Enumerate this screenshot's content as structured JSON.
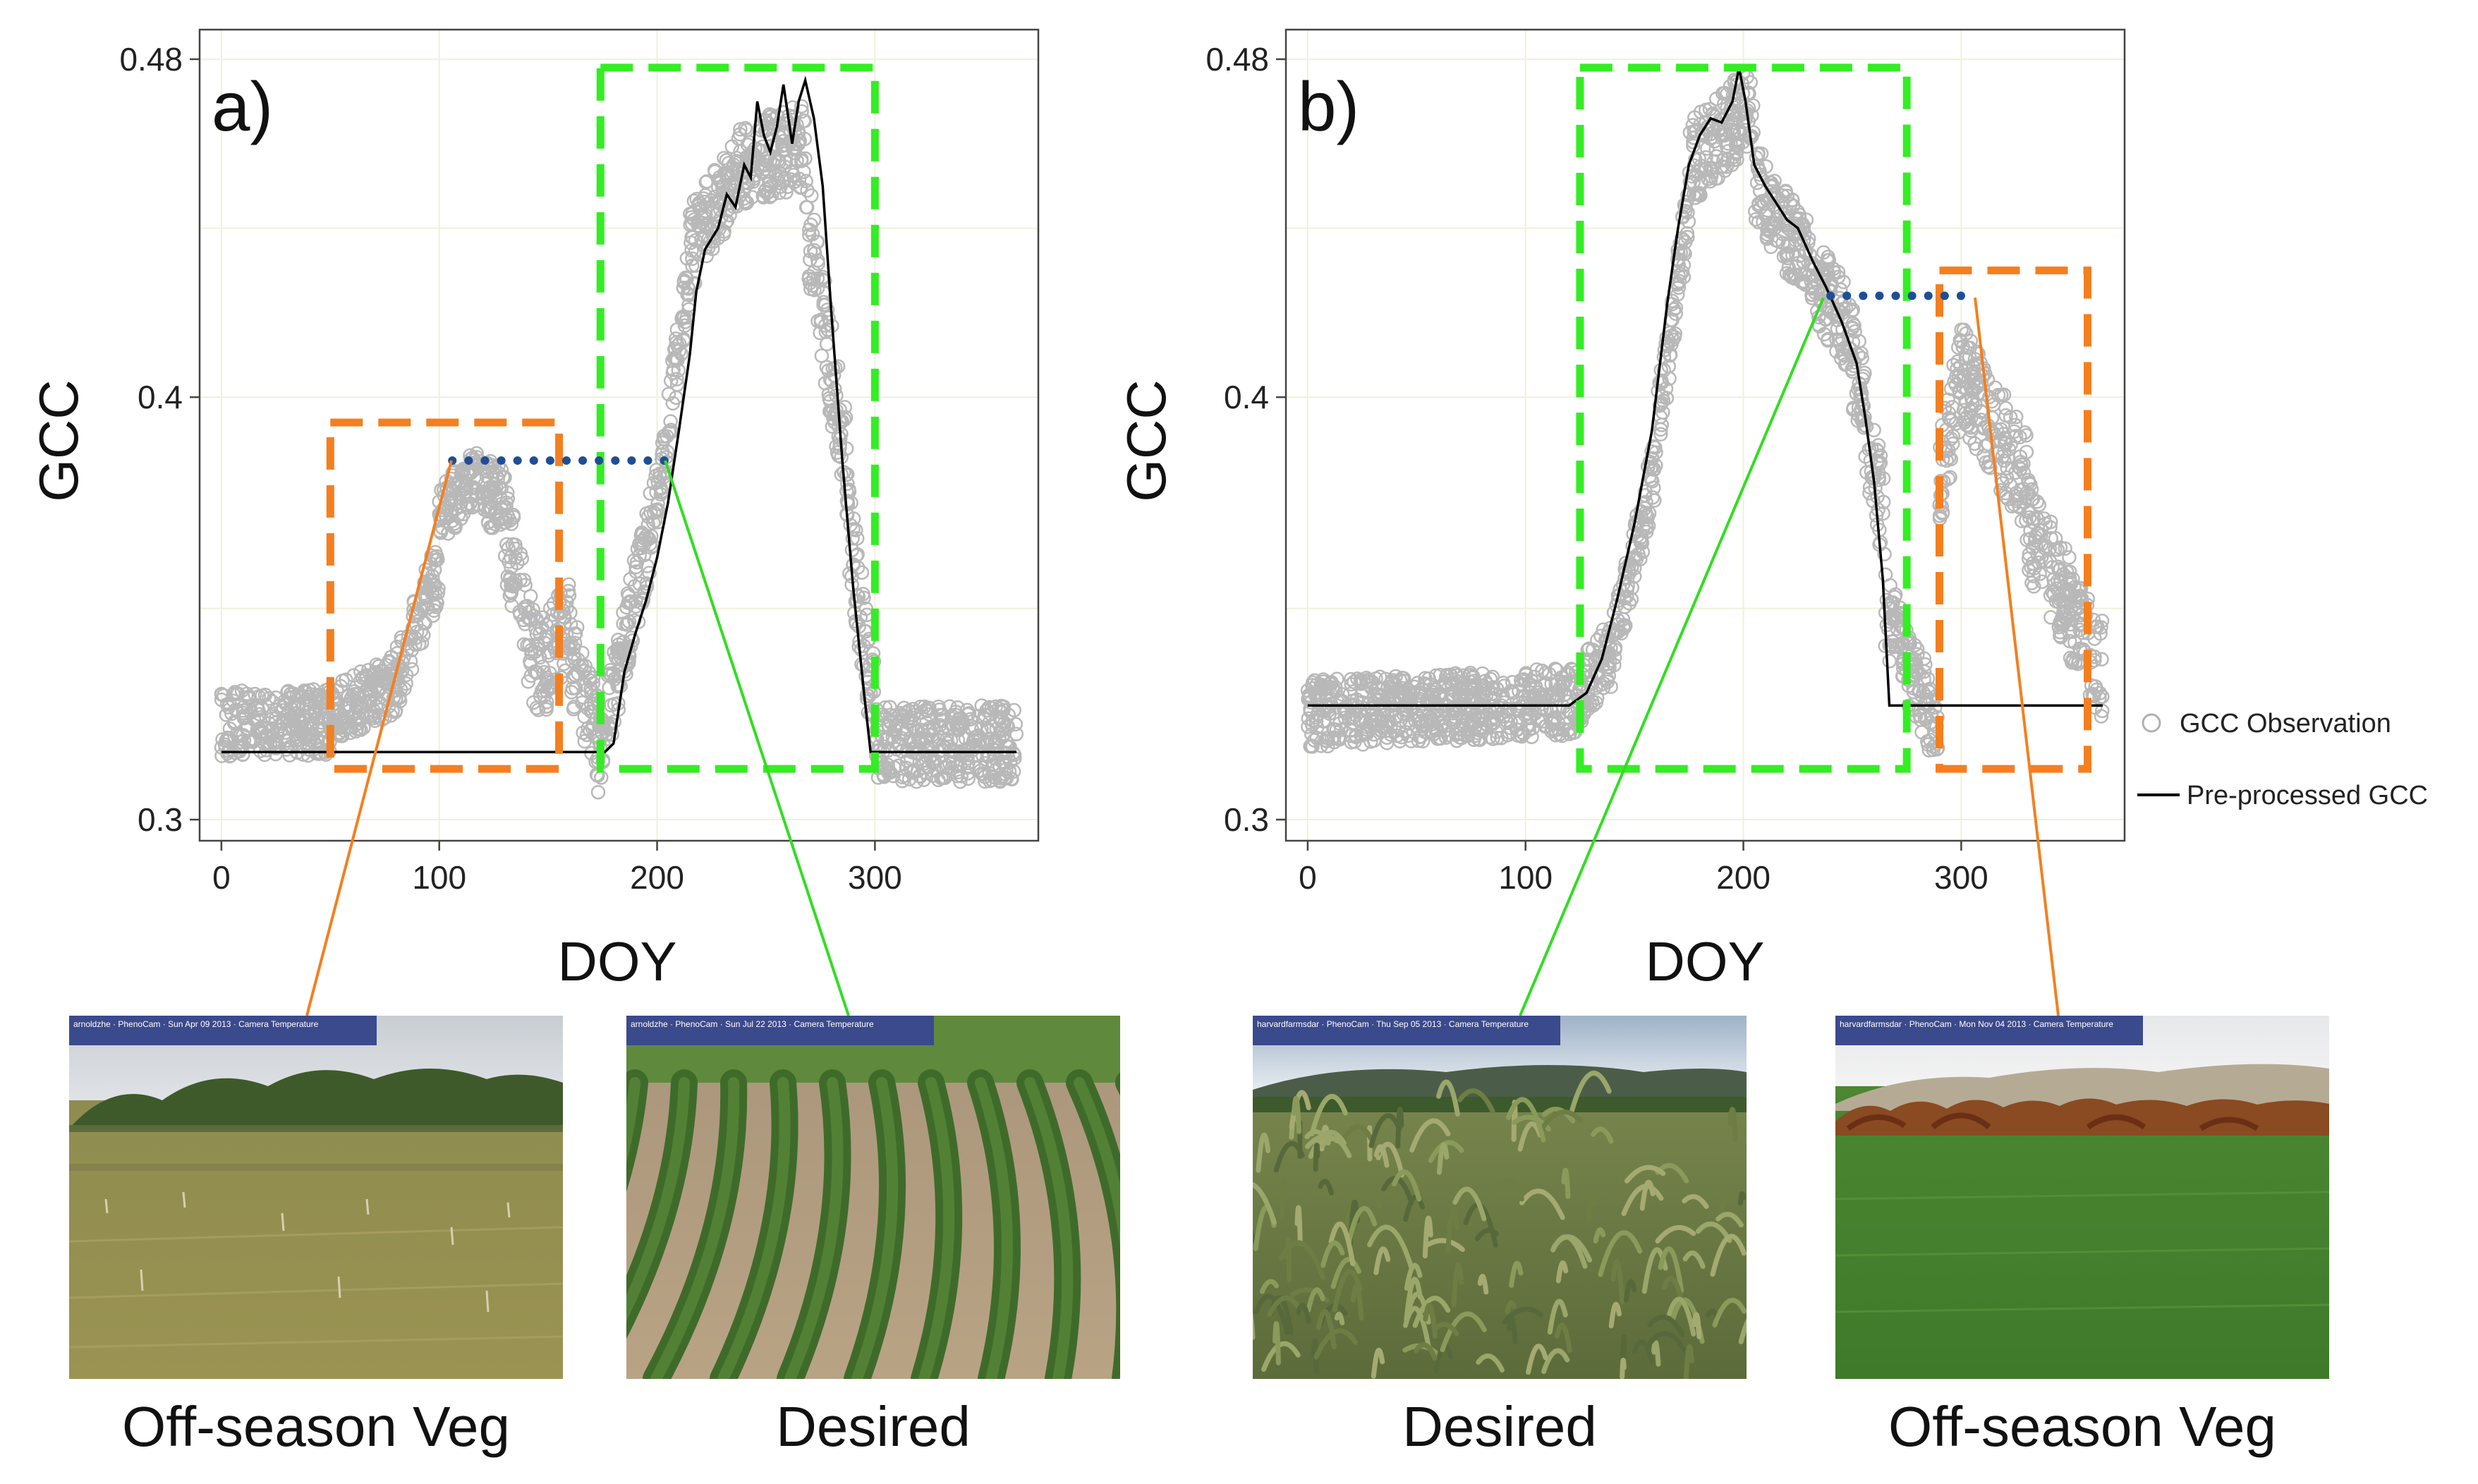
{
  "chart_data": [
    {
      "panel": "a)",
      "type": "scatter",
      "xlabel": "DOY",
      "ylabel": "GCC",
      "xlim": [
        -10,
        375
      ],
      "ylim": [
        0.295,
        0.487
      ],
      "xticks": [
        0,
        100,
        200,
        300
      ],
      "yticks": [
        0.3,
        0.4,
        0.48
      ],
      "ytick_labels": [
        "0.3",
        "0.4",
        "0.48"
      ],
      "grid": true,
      "observation_segments": [
        {
          "x0": 0,
          "x1": 50,
          "y0": 0.323,
          "y1": 0.323,
          "spread": 0.008
        },
        {
          "x0": 50,
          "x1": 80,
          "y0": 0.325,
          "y1": 0.332,
          "spread": 0.007
        },
        {
          "x0": 80,
          "x1": 100,
          "y0": 0.333,
          "y1": 0.36,
          "spread": 0.008
        },
        {
          "x0": 100,
          "x1": 115,
          "y0": 0.372,
          "y1": 0.38,
          "spread": 0.007
        },
        {
          "x0": 115,
          "x1": 130,
          "y0": 0.38,
          "y1": 0.375,
          "spread": 0.008
        },
        {
          "x0": 130,
          "x1": 145,
          "y0": 0.37,
          "y1": 0.335,
          "spread": 0.012
        },
        {
          "x0": 145,
          "x1": 160,
          "y0": 0.335,
          "y1": 0.345,
          "spread": 0.012
        },
        {
          "x0": 160,
          "x1": 175,
          "y0": 0.34,
          "y1": 0.315,
          "spread": 0.012
        },
        {
          "x0": 175,
          "x1": 200,
          "y0": 0.32,
          "y1": 0.375,
          "spread": 0.01
        },
        {
          "x0": 200,
          "x1": 215,
          "y0": 0.375,
          "y1": 0.43,
          "spread": 0.008
        },
        {
          "x0": 215,
          "x1": 240,
          "y0": 0.435,
          "y1": 0.455,
          "spread": 0.01
        },
        {
          "x0": 240,
          "x1": 268,
          "y0": 0.455,
          "y1": 0.46,
          "spread": 0.01
        },
        {
          "x0": 268,
          "x1": 288,
          "y0": 0.445,
          "y1": 0.38,
          "spread": 0.012
        },
        {
          "x0": 288,
          "x1": 300,
          "y0": 0.37,
          "y1": 0.325,
          "spread": 0.012
        },
        {
          "x0": 300,
          "x1": 365,
          "y0": 0.318,
          "y1": 0.318,
          "spread": 0.009
        }
      ],
      "preprocessed_line": [
        [
          0,
          0.316
        ],
        [
          176,
          0.316
        ],
        [
          180,
          0.318
        ],
        [
          185,
          0.335
        ],
        [
          190,
          0.344
        ],
        [
          195,
          0.352
        ],
        [
          200,
          0.362
        ],
        [
          205,
          0.375
        ],
        [
          210,
          0.392
        ],
        [
          215,
          0.41
        ],
        [
          218,
          0.425
        ],
        [
          222,
          0.435
        ],
        [
          228,
          0.44
        ],
        [
          232,
          0.448
        ],
        [
          236,
          0.445
        ],
        [
          240,
          0.455
        ],
        [
          243,
          0.452
        ],
        [
          246,
          0.47
        ],
        [
          249,
          0.462
        ],
        [
          252,
          0.458
        ],
        [
          255,
          0.464
        ],
        [
          258,
          0.474
        ],
        [
          262,
          0.46
        ],
        [
          265,
          0.47
        ],
        [
          268,
          0.475
        ],
        [
          272,
          0.466
        ],
        [
          276,
          0.45
        ],
        [
          280,
          0.42
        ],
        [
          285,
          0.385
        ],
        [
          290,
          0.355
        ],
        [
          295,
          0.33
        ],
        [
          298,
          0.316
        ],
        [
          365,
          0.316
        ]
      ],
      "offseason_box": {
        "x0": 50,
        "x1": 155,
        "y0": 0.312,
        "y1": 0.394
      },
      "desired_box": {
        "x0": 174,
        "x1": 300,
        "y0": 0.312,
        "y1": 0.478
      },
      "plateau_line": {
        "x0": 106,
        "x1": 205,
        "y": 0.385
      }
    },
    {
      "panel": "b)",
      "type": "scatter",
      "xlabel": "DOY",
      "ylabel": "GCC",
      "xlim": [
        -10,
        375
      ],
      "ylim": [
        0.295,
        0.487
      ],
      "xticks": [
        0,
        100,
        200,
        300
      ],
      "yticks": [
        0.3,
        0.4,
        0.48
      ],
      "ytick_labels": [
        "0.3",
        "0.4",
        "0.48"
      ],
      "grid": true,
      "observation_segments": [
        {
          "x0": 0,
          "x1": 125,
          "y0": 0.325,
          "y1": 0.328,
          "spread": 0.008
        },
        {
          "x0": 125,
          "x1": 140,
          "y0": 0.33,
          "y1": 0.34,
          "spread": 0.008
        },
        {
          "x0": 140,
          "x1": 160,
          "y0": 0.34,
          "y1": 0.385,
          "spread": 0.008
        },
        {
          "x0": 160,
          "x1": 175,
          "y0": 0.39,
          "y1": 0.445,
          "spread": 0.009
        },
        {
          "x0": 175,
          "x1": 205,
          "y0": 0.455,
          "y1": 0.47,
          "spread": 0.01
        },
        {
          "x0": 205,
          "x1": 230,
          "y0": 0.45,
          "y1": 0.432,
          "spread": 0.01
        },
        {
          "x0": 230,
          "x1": 250,
          "y0": 0.43,
          "y1": 0.415,
          "spread": 0.01
        },
        {
          "x0": 250,
          "x1": 265,
          "y0": 0.41,
          "y1": 0.37,
          "spread": 0.012
        },
        {
          "x0": 265,
          "x1": 290,
          "y0": 0.35,
          "y1": 0.32,
          "spread": 0.01
        },
        {
          "x0": 290,
          "x1": 300,
          "y0": 0.38,
          "y1": 0.405,
          "spread": 0.012
        },
        {
          "x0": 300,
          "x1": 330,
          "y0": 0.405,
          "y1": 0.38,
          "spread": 0.012
        },
        {
          "x0": 330,
          "x1": 365,
          "y0": 0.37,
          "y1": 0.335,
          "spread": 0.012
        }
      ],
      "preprocessed_line": [
        [
          0,
          0.327
        ],
        [
          120,
          0.327
        ],
        [
          128,
          0.33
        ],
        [
          135,
          0.338
        ],
        [
          142,
          0.352
        ],
        [
          150,
          0.37
        ],
        [
          158,
          0.392
        ],
        [
          165,
          0.422
        ],
        [
          170,
          0.44
        ],
        [
          175,
          0.455
        ],
        [
          180,
          0.462
        ],
        [
          185,
          0.466
        ],
        [
          190,
          0.465
        ],
        [
          195,
          0.47
        ],
        [
          198,
          0.478
        ],
        [
          201,
          0.47
        ],
        [
          205,
          0.455
        ],
        [
          210,
          0.45
        ],
        [
          215,
          0.446
        ],
        [
          220,
          0.442
        ],
        [
          225,
          0.44
        ],
        [
          232,
          0.432
        ],
        [
          238,
          0.426
        ],
        [
          245,
          0.418
        ],
        [
          252,
          0.408
        ],
        [
          256,
          0.395
        ],
        [
          260,
          0.38
        ],
        [
          264,
          0.357
        ],
        [
          267,
          0.327
        ],
        [
          365,
          0.327
        ]
      ],
      "desired_box": {
        "x0": 125,
        "x1": 275,
        "y0": 0.312,
        "y1": 0.478
      },
      "offseason_box": {
        "x0": 290,
        "x1": 358,
        "y0": 0.312,
        "y1": 0.43
      },
      "plateau_line": {
        "x0": 240,
        "x1": 305,
        "y": 0.424
      }
    }
  ],
  "legend": {
    "observation_label": "GCC Observation",
    "line_label": "Pre-processed GCC"
  },
  "photos": [
    {
      "caption": "Off-season Veg",
      "banner": "arnoldzhe · PhenoCam · Sun Apr 09 2013 · Camera Temperature",
      "scene": "grass"
    },
    {
      "caption": "Desired",
      "banner": "arnoldzhe · PhenoCam · Sun Jul 22 2013 · Camera Temperature",
      "scene": "soy"
    },
    {
      "caption": "Desired",
      "banner": "harvardfarmsdar · PhenoCam · Thu Sep 05 2013 · Camera Temperature",
      "scene": "corn"
    },
    {
      "caption": "Off-season Veg",
      "banner": "harvardfarmsdar · PhenoCam · Mon Nov 04 2013 · Camera Temperature",
      "scene": "field"
    }
  ],
  "colors": {
    "observation": "#b8b8b8",
    "line": "#000000",
    "desired_box": "#33ee22",
    "offseason_box": "#f47f1f",
    "plateau": "#1f4e96",
    "grid": "#f1f0dc"
  }
}
